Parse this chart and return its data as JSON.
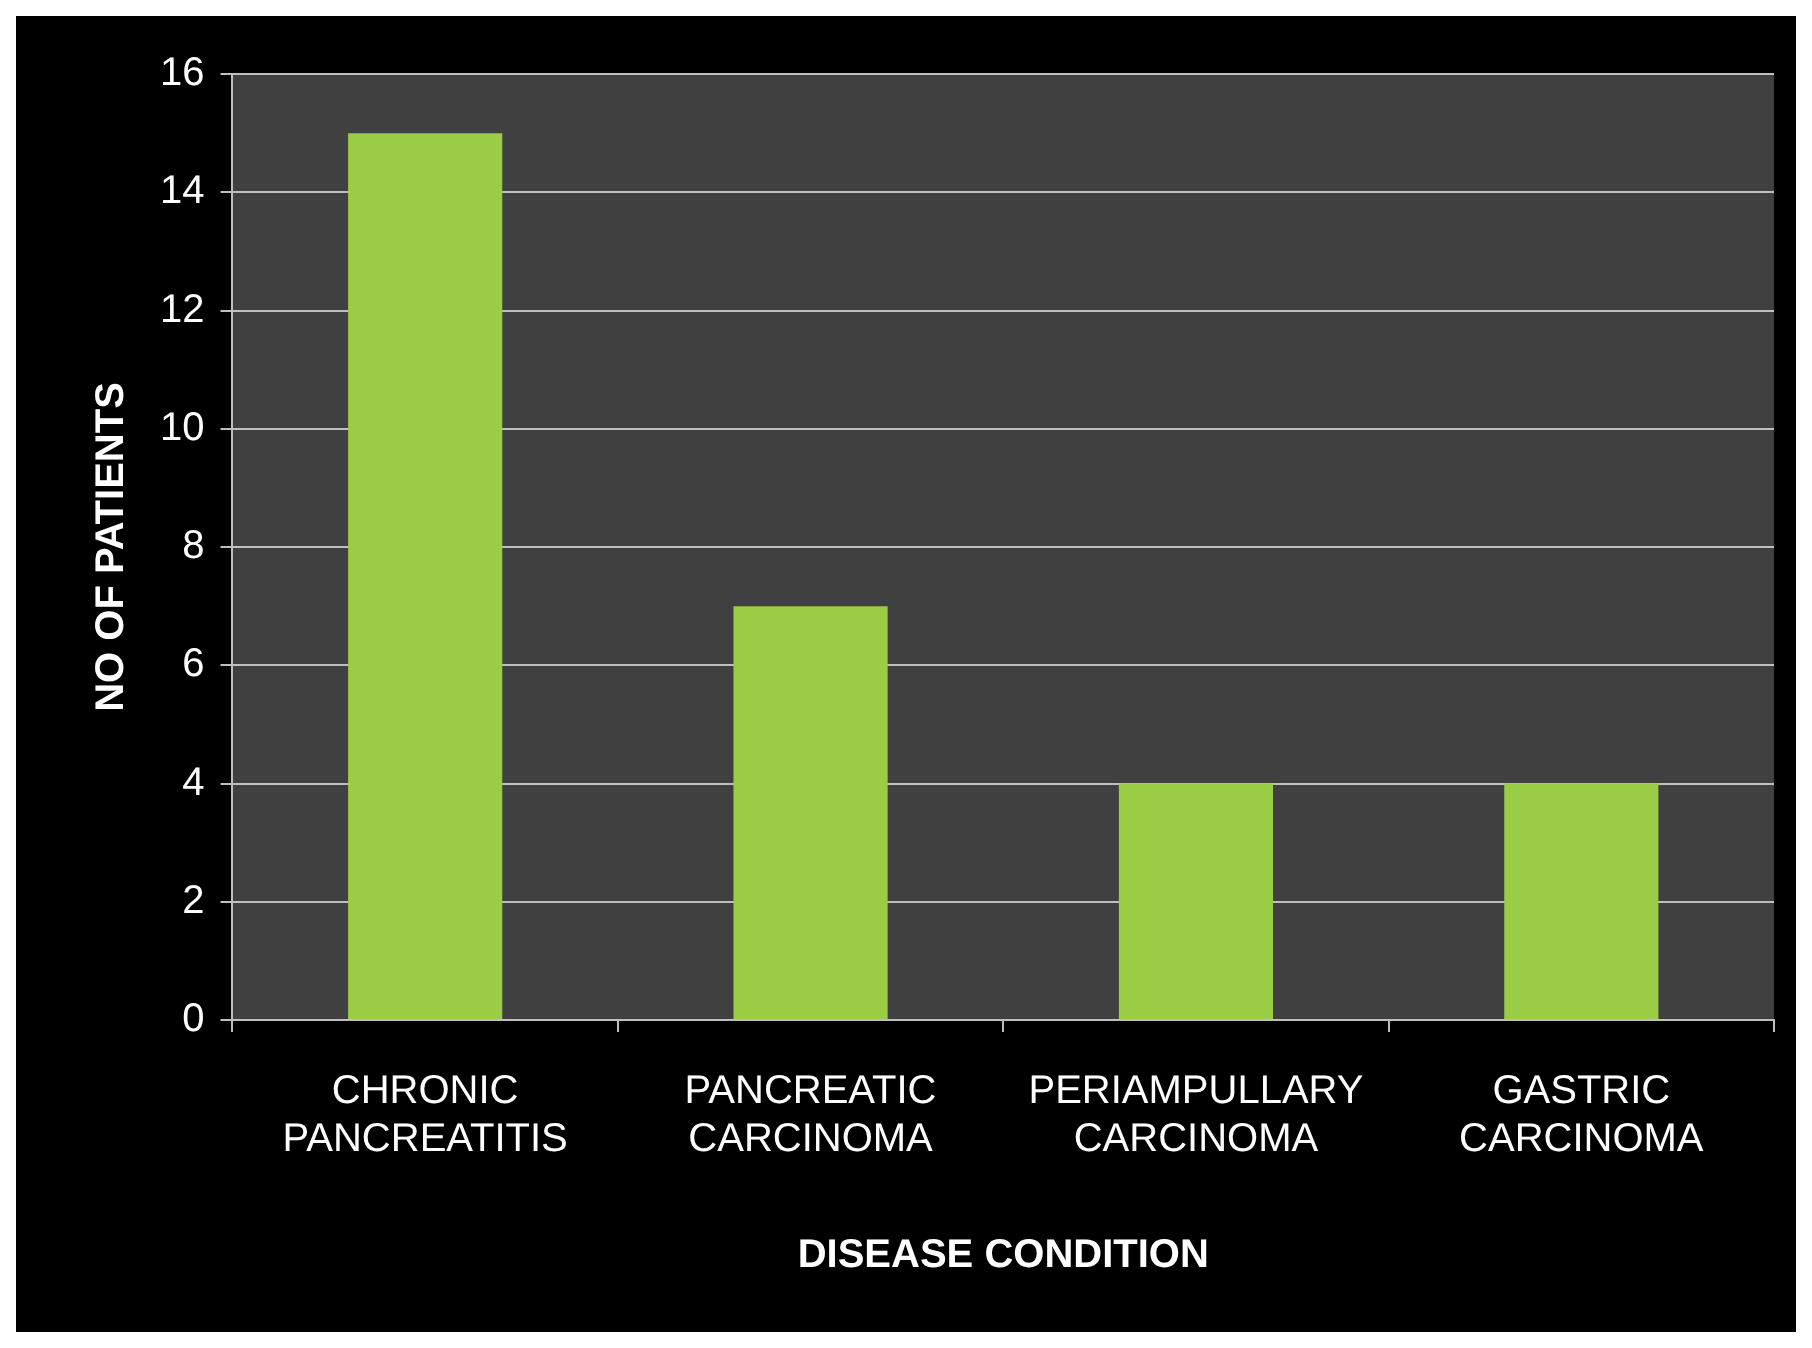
{
  "chart_data": {
    "type": "bar",
    "xlabel": "DISEASE CONDITION",
    "ylabel": "NO OF PATIENTS",
    "categories": [
      "CHRONIC PANCREATITIS",
      "PANCREATIC CARCINOMA",
      "PERIAMPULLARY CARCINOMA",
      "GASTRIC CARCINOMA"
    ],
    "values": [
      15,
      7,
      4,
      4
    ],
    "color": "#9acd45",
    "ylim": [
      0,
      16
    ],
    "yticks": [
      0,
      2,
      4,
      6,
      8,
      10,
      12,
      14,
      16
    ],
    "grid": "y",
    "legend": false
  }
}
